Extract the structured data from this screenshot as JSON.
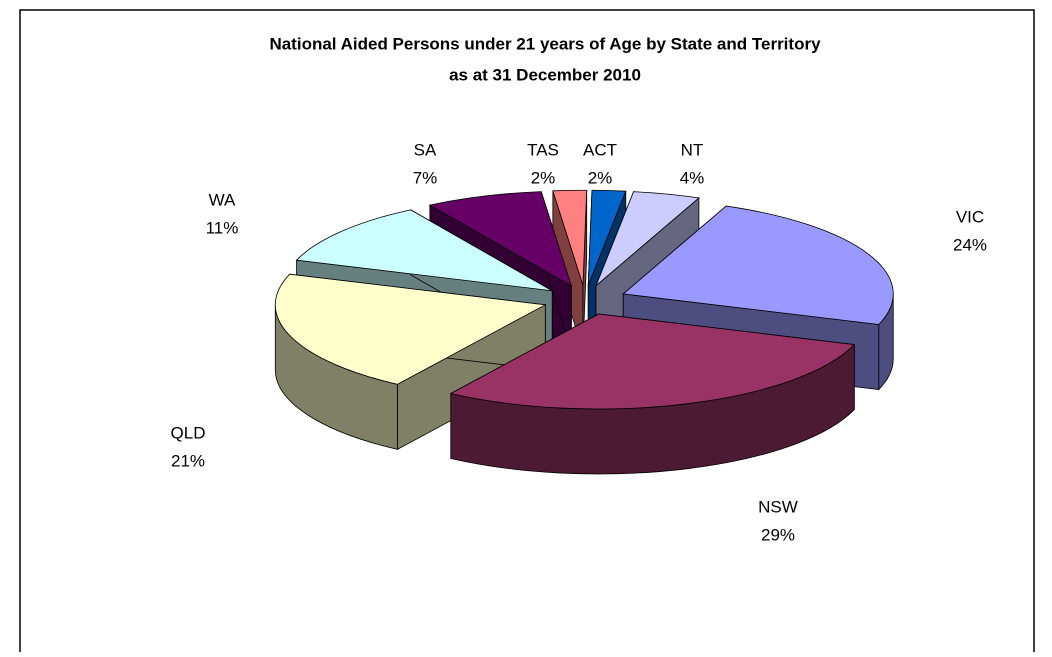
{
  "chart_data": {
    "type": "pie",
    "title": "National Aided Persons under 21 years of Age by State and Territory",
    "subtitle": "as at 31 December 2010",
    "categories": [
      "NT",
      "VIC",
      "NSW",
      "QLD",
      "WA",
      "SA",
      "TAS",
      "ACT"
    ],
    "values": [
      4,
      24,
      29,
      21,
      11,
      7,
      2,
      2
    ],
    "value_labels": [
      "4%",
      "24%",
      "29%",
      "21%",
      "11%",
      "7%",
      "2%",
      "2%"
    ],
    "colors": [
      "#ccccff",
      "#9999ff",
      "#993366",
      "#ffffcc",
      "#ccffff",
      "#660066",
      "#ff8080",
      "#0066cc"
    ]
  }
}
